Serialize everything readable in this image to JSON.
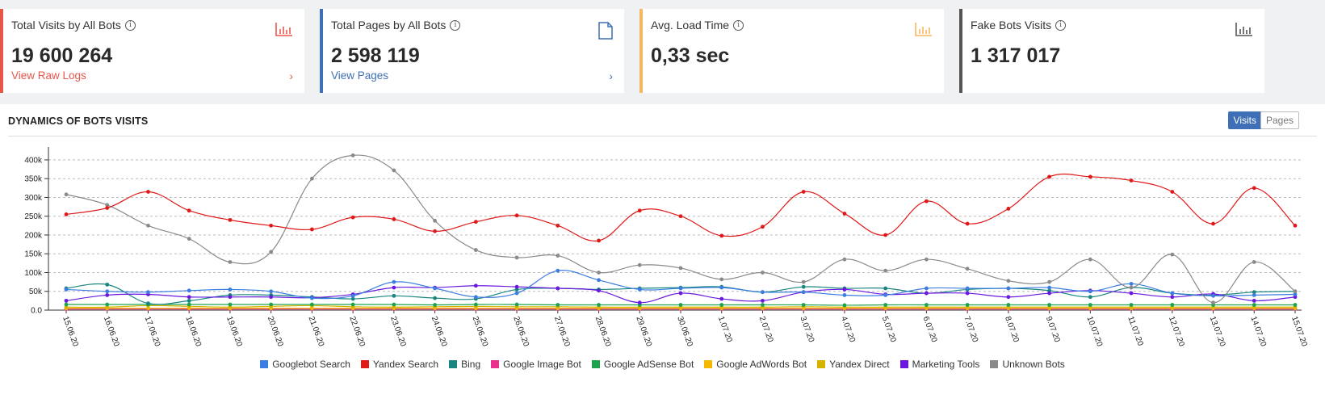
{
  "cards": [
    {
      "title": "Total Visits by All Bots",
      "value": "19 600 264",
      "link": "View Raw Logs",
      "accent": "#e8564a",
      "icon": "bar-chart-icon"
    },
    {
      "title": "Total Pages by All Bots",
      "value": "2 598 119",
      "link": "View Pages",
      "accent": "#3f6fb6",
      "icon": "document-icon"
    },
    {
      "title": "Avg. Load Time",
      "value": "0,33 sec",
      "link": "",
      "accent": "#f5b860",
      "icon": "bar-chart-icon"
    },
    {
      "title": "Fake Bots Visits",
      "value": "1 317 017",
      "link": "",
      "accent": "#555555",
      "icon": "bar-chart-icon"
    }
  ],
  "panel": {
    "title": "DYNAMICS OF BOTS VISITS",
    "toggle_visits": "Visits",
    "toggle_pages": "Pages"
  },
  "chart_data": {
    "type": "line",
    "categories": [
      "15.06.20",
      "16.06.20",
      "17.06.20",
      "18.06.20",
      "19.06.20",
      "20.06.20",
      "21.06.20",
      "22.06.20",
      "23.06.20",
      "24.06.20",
      "25.06.20",
      "26.06.20",
      "27.06.20",
      "28.06.20",
      "29.06.20",
      "30.06.20",
      "1.07.20",
      "2.07.20",
      "3.07.20",
      "4.07.20",
      "5.07.20",
      "6.07.20",
      "7.07.20",
      "8.07.20",
      "9.07.20",
      "10.07.20",
      "11.07.20",
      "12.07.20",
      "13.07.20",
      "14.07.20",
      "15.07.20"
    ],
    "yticks": [
      "0.0",
      "50k",
      "100k",
      "150k",
      "200k",
      "250k",
      "300k",
      "350k",
      "400k"
    ],
    "ylim": [
      0,
      430000
    ],
    "series": [
      {
        "name": "Googlebot Search",
        "color": "#3b7de0",
        "values": [
          55000,
          50000,
          48000,
          52000,
          55000,
          50000,
          32000,
          38000,
          75000,
          58000,
          35000,
          45000,
          105000,
          80000,
          55000,
          58000,
          60000,
          48000,
          48000,
          40000,
          40000,
          58000,
          58000,
          58000,
          60000,
          50000,
          70000,
          45000,
          38000,
          40000,
          42000
        ]
      },
      {
        "name": "Yandex Search",
        "color": "#e01818",
        "values": [
          255000,
          272000,
          315000,
          265000,
          240000,
          225000,
          215000,
          247000,
          242000,
          210000,
          235000,
          252000,
          225000,
          185000,
          265000,
          250000,
          198000,
          222000,
          315000,
          257000,
          200000,
          290000,
          230000,
          270000,
          355000,
          355000,
          345000,
          315000,
          230000,
          325000,
          225000
        ]
      },
      {
        "name": "Bing",
        "color": "#18857f",
        "values": [
          58000,
          68000,
          18000,
          25000,
          40000,
          40000,
          35000,
          30000,
          38000,
          32000,
          30000,
          55000,
          58000,
          55000,
          58000,
          60000,
          62000,
          48000,
          62000,
          58000,
          58000,
          45000,
          55000,
          58000,
          52000,
          35000,
          60000,
          45000,
          40000,
          48000,
          50000
        ]
      },
      {
        "name": "Google Image Bot",
        "color": "#e8308c",
        "values": [
          3000,
          3000,
          3000,
          3000,
          3000,
          3000,
          3000,
          3000,
          3000,
          3000,
          3000,
          3000,
          3000,
          3000,
          3000,
          3000,
          3000,
          3000,
          3000,
          3000,
          3000,
          3000,
          3000,
          3000,
          3000,
          3000,
          3000,
          3000,
          3000,
          3000,
          3000
        ]
      },
      {
        "name": "Google AdSense Bot",
        "color": "#1aa34a",
        "values": [
          15000,
          15000,
          15000,
          15000,
          15000,
          15000,
          15000,
          15000,
          15000,
          14000,
          15000,
          15000,
          14000,
          14000,
          14000,
          14000,
          14000,
          14000,
          14000,
          13000,
          14000,
          14000,
          14000,
          14000,
          14000,
          14000,
          14000,
          14000,
          14000,
          14000,
          14000
        ]
      },
      {
        "name": "Google AdWords Bot",
        "color": "#f5b800",
        "values": [
          5000,
          5000,
          5000,
          5000,
          5000,
          5000,
          5000,
          5000,
          5000,
          5000,
          5000,
          5000,
          5000,
          5000,
          5000,
          5000,
          5000,
          5000,
          5000,
          5000,
          5000,
          5000,
          5000,
          5000,
          5000,
          5000,
          5000,
          5000,
          5000,
          5000,
          5000
        ]
      },
      {
        "name": "Yandex Direct",
        "color": "#d4b400",
        "values": [
          8000,
          8000,
          12000,
          10000,
          8000,
          10000,
          12000,
          9000,
          8000,
          9000,
          10000,
          9000,
          9000,
          8000,
          8000,
          8000,
          8000,
          8000,
          9000,
          8000,
          8000,
          8000,
          8000,
          8000,
          8000,
          8000,
          8000,
          8000,
          8000,
          8000,
          8000
        ]
      },
      {
        "name": "Marketing Tools",
        "color": "#6a18e0",
        "values": [
          25000,
          40000,
          42000,
          35000,
          35000,
          35000,
          33000,
          42000,
          60000,
          60000,
          65000,
          62000,
          58000,
          52000,
          20000,
          45000,
          30000,
          25000,
          48000,
          55000,
          42000,
          45000,
          45000,
          35000,
          45000,
          52000,
          45000,
          35000,
          43000,
          25000,
          35000
        ]
      },
      {
        "name": "Unknown Bots",
        "color": "#8a8a8a",
        "values": [
          308000,
          280000,
          225000,
          190000,
          128000,
          155000,
          350000,
          412000,
          372000,
          238000,
          160000,
          140000,
          145000,
          100000,
          120000,
          112000,
          82000,
          100000,
          75000,
          135000,
          105000,
          135000,
          110000,
          78000,
          75000,
          135000,
          60000,
          148000,
          20000,
          128000,
          50000
        ]
      }
    ]
  }
}
